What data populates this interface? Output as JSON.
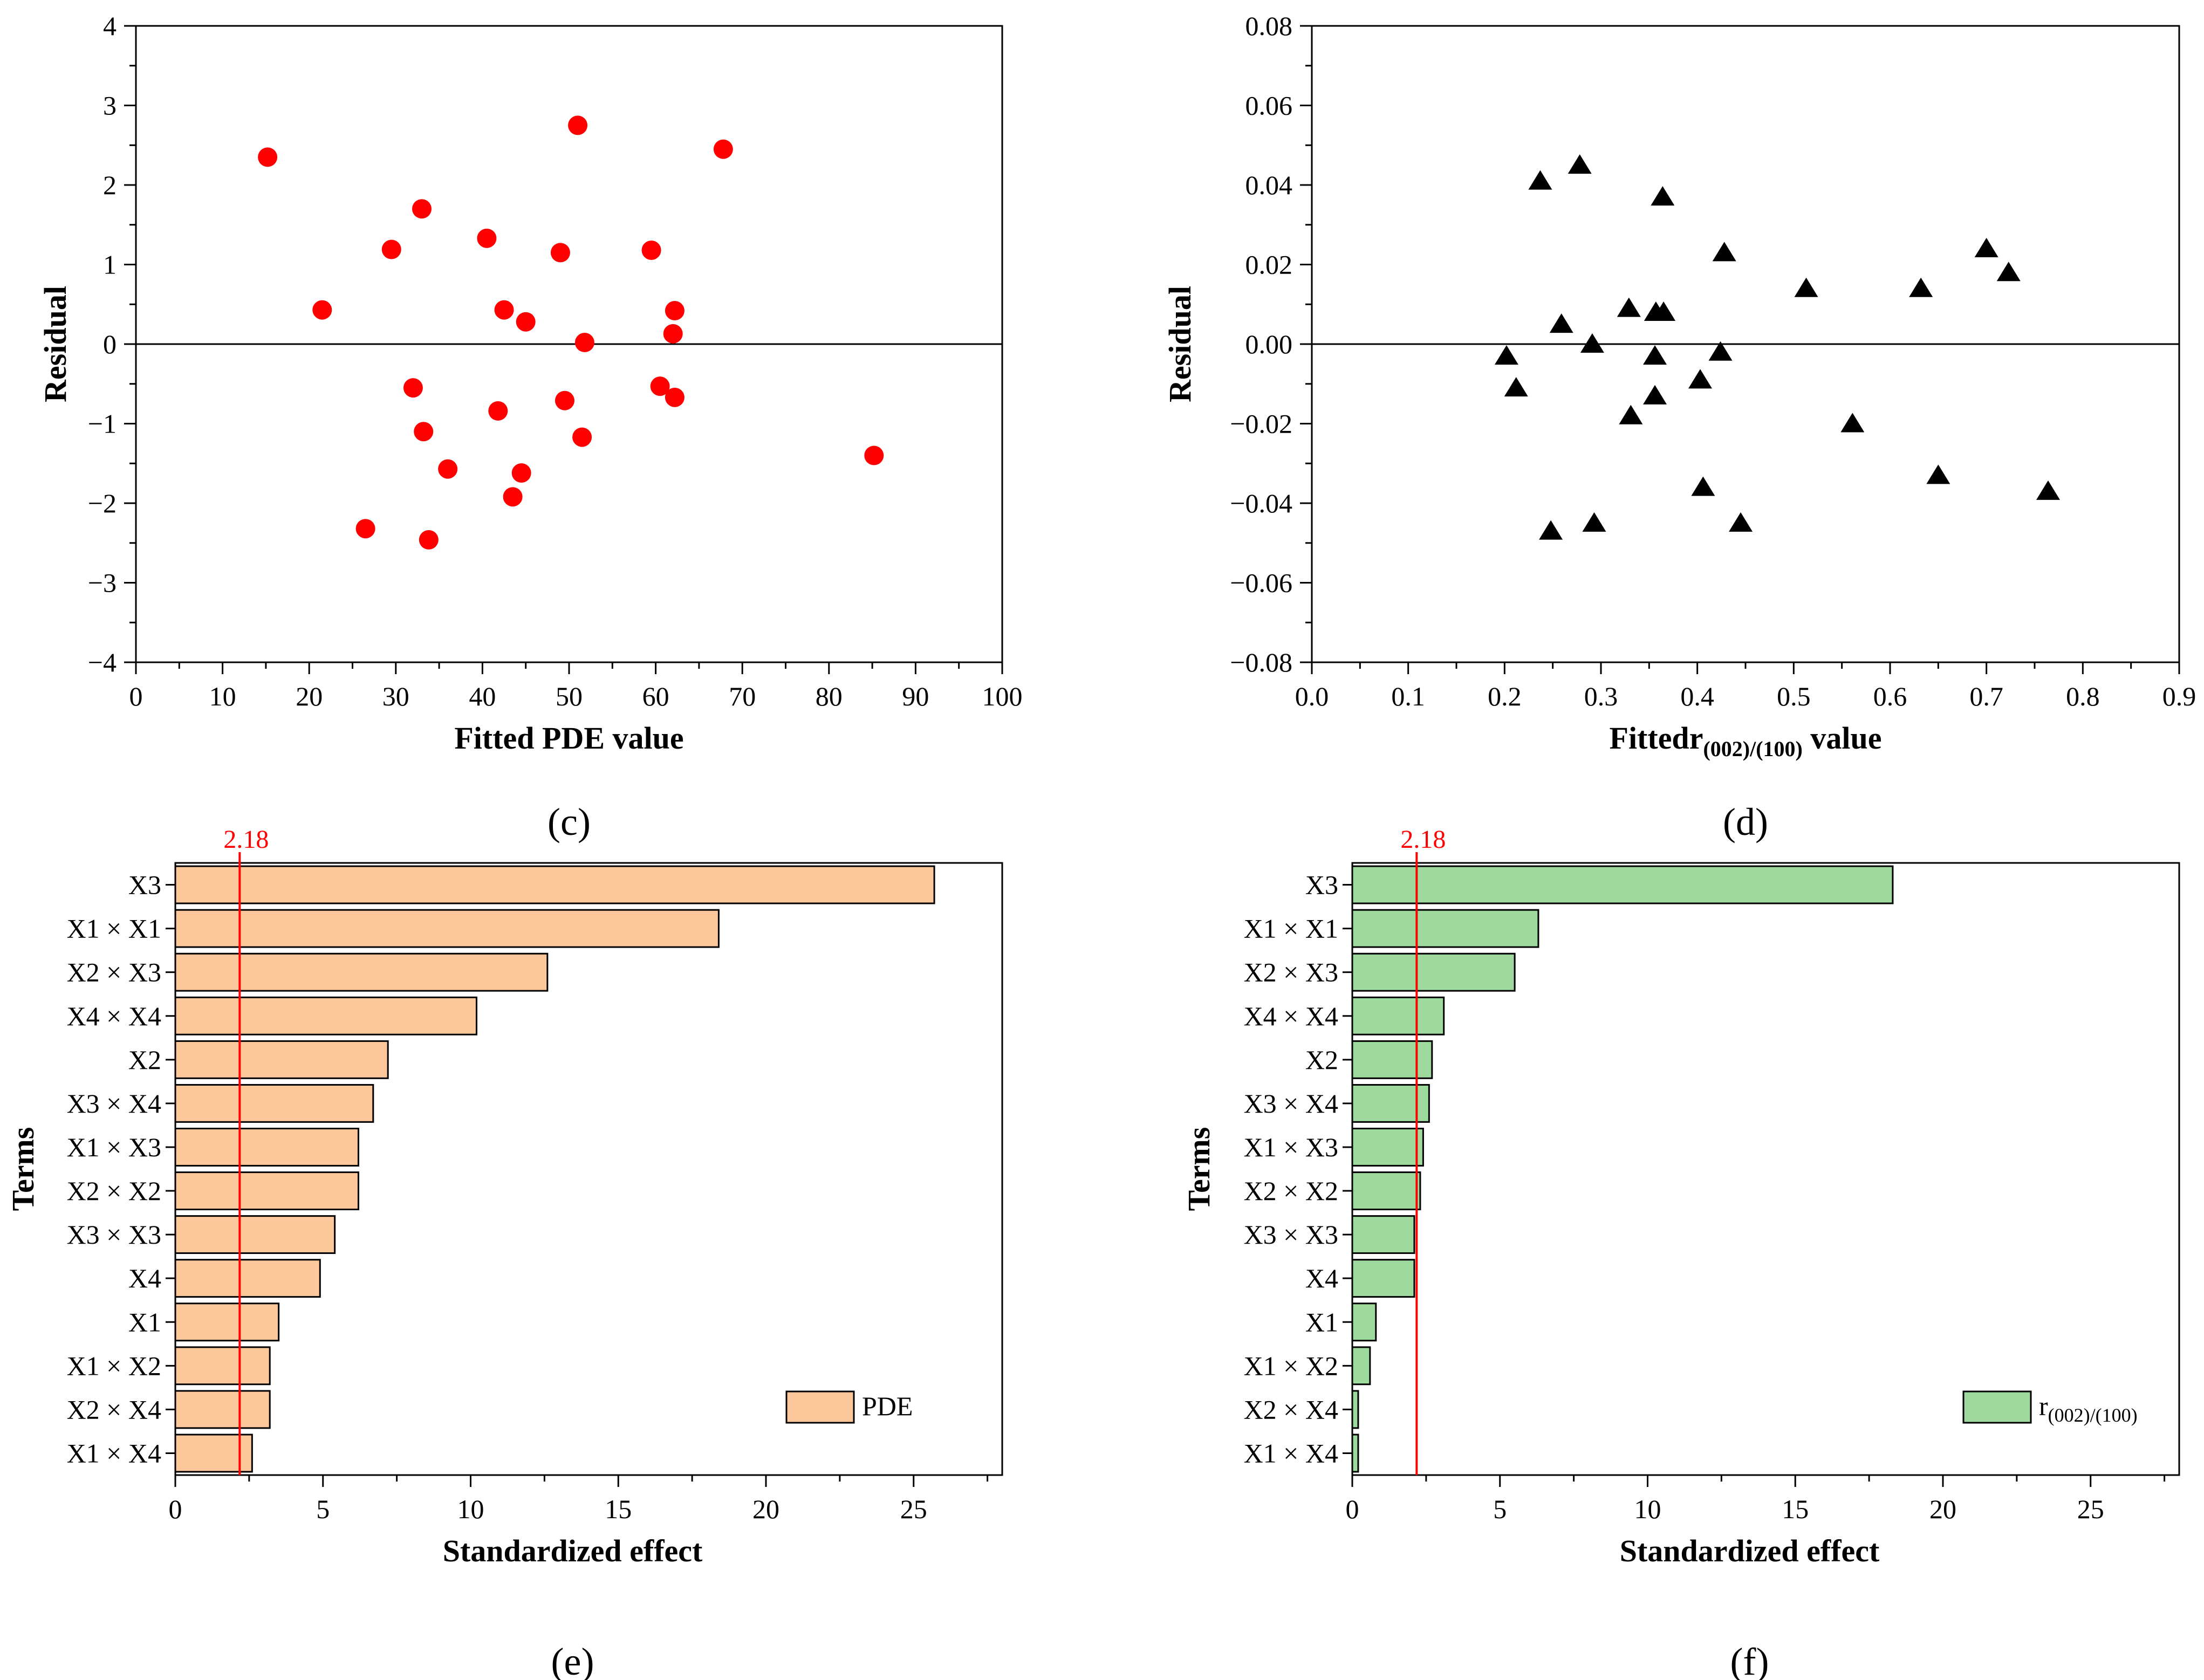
{
  "chart_data": [
    {
      "id": "c",
      "type": "scatter",
      "panel_label": "c",
      "xlabel": "Fitted PDE value",
      "ylabel": "Residual",
      "xlim": [
        0,
        100
      ],
      "ylim": [
        -4,
        4
      ],
      "xticks": [
        0,
        10,
        20,
        30,
        40,
        50,
        60,
        70,
        80,
        90,
        100
      ],
      "yticks": [
        -4,
        -3,
        -2,
        -1,
        0,
        1,
        2,
        3,
        4
      ],
      "marker": "circle",
      "marker_color": "#ff0000",
      "reference_line_y": 0,
      "points": [
        [
          15.2,
          2.35
        ],
        [
          21.5,
          0.43
        ],
        [
          26.5,
          -2.32
        ],
        [
          29.5,
          1.19
        ],
        [
          32.0,
          -0.55
        ],
        [
          33.0,
          1.7
        ],
        [
          33.2,
          -1.1
        ],
        [
          33.8,
          -2.46
        ],
        [
          36.0,
          -1.57
        ],
        [
          40.5,
          1.33
        ],
        [
          41.8,
          -0.84
        ],
        [
          42.5,
          0.43
        ],
        [
          43.5,
          -1.92
        ],
        [
          44.5,
          -1.62
        ],
        [
          45.0,
          0.28
        ],
        [
          49.0,
          1.15
        ],
        [
          49.5,
          -0.71
        ],
        [
          51.0,
          2.75
        ],
        [
          51.5,
          -1.17
        ],
        [
          51.8,
          0.02
        ],
        [
          59.5,
          1.18
        ],
        [
          60.5,
          -0.53
        ],
        [
          62.0,
          0.13
        ],
        [
          62.2,
          0.42
        ],
        [
          62.2,
          -0.67
        ],
        [
          67.8,
          2.45
        ],
        [
          85.2,
          -1.4
        ]
      ]
    },
    {
      "id": "d",
      "type": "scatter",
      "panel_label": "d",
      "xlabel_main": "Fittedr",
      "xlabel_sub": "(002)/(100)",
      "xlabel_tail": " value",
      "ylabel": "Residual",
      "xlim": [
        0.0,
        0.9
      ],
      "ylim": [
        -0.08,
        0.08
      ],
      "xticks": [
        "0.0",
        "0.1",
        "0.2",
        "0.3",
        "0.4",
        "0.5",
        "0.6",
        "0.7",
        "0.8",
        "0.9"
      ],
      "yticks": [
        "-0.08",
        "-0.06",
        "-0.04",
        "-0.02",
        "0.00",
        "0.02",
        "0.04",
        "0.06",
        "0.08"
      ],
      "marker": "triangle",
      "marker_color": "#000000",
      "reference_line_y": 0,
      "points": [
        [
          0.202,
          -0.003
        ],
        [
          0.212,
          -0.011
        ],
        [
          0.237,
          0.041
        ],
        [
          0.248,
          -0.047
        ],
        [
          0.259,
          0.005
        ],
        [
          0.278,
          0.045
        ],
        [
          0.291,
          0.0
        ],
        [
          0.293,
          -0.045
        ],
        [
          0.329,
          0.009
        ],
        [
          0.331,
          -0.018
        ],
        [
          0.356,
          -0.003
        ],
        [
          0.356,
          -0.013
        ],
        [
          0.357,
          0.008
        ],
        [
          0.364,
          0.037
        ],
        [
          0.365,
          0.008
        ],
        [
          0.403,
          -0.009
        ],
        [
          0.406,
          -0.036
        ],
        [
          0.424,
          -0.002
        ],
        [
          0.428,
          0.023
        ],
        [
          0.445,
          -0.045
        ],
        [
          0.513,
          0.014
        ],
        [
          0.561,
          -0.02
        ],
        [
          0.632,
          0.014
        ],
        [
          0.65,
          -0.033
        ],
        [
          0.7,
          0.024
        ],
        [
          0.723,
          0.018
        ],
        [
          0.764,
          -0.037
        ]
      ]
    },
    {
      "id": "e",
      "type": "bar",
      "orientation": "horizontal",
      "panel_label": "e",
      "xlabel": "Standardized effect",
      "ylabel": "Terms",
      "xlim": [
        0,
        28
      ],
      "xticks": [
        0,
        5,
        10,
        15,
        20,
        25
      ],
      "threshold": 2.18,
      "threshold_label": "2.18",
      "bar_color": "#fcc89b",
      "legend": "PDE",
      "categories": [
        "X3",
        "X1 × X1",
        "X2 × X3",
        "X4 × X4",
        "X2",
        "X3 × X4",
        "X1 × X3",
        "X2 × X2",
        "X3 × X3",
        "X4",
        "X1",
        "X1 × X2",
        "X2 × X4",
        "X1 × X4"
      ],
      "values": [
        25.7,
        18.4,
        12.6,
        10.2,
        7.2,
        6.7,
        6.2,
        6.2,
        5.4,
        4.9,
        3.5,
        3.2,
        3.2,
        2.6
      ]
    },
    {
      "id": "f",
      "type": "bar",
      "orientation": "horizontal",
      "panel_label": "f",
      "xlabel": "Standardized effect",
      "ylabel": "Terms",
      "xlim": [
        0,
        28
      ],
      "xticks": [
        0,
        5,
        10,
        15,
        20,
        25
      ],
      "threshold": 2.18,
      "threshold_label": "2.18",
      "bar_color": "#9ed99e",
      "legend_main": "r",
      "legend_sub": "(002)/(100)",
      "categories": [
        "X3",
        "X1 × X1",
        "X2 × X3",
        "X4 × X4",
        "X2",
        "X3 × X4",
        "X1 × X3",
        "X2 × X2",
        "X3 × X3",
        "X4",
        "X1",
        "X1 × X2",
        "X2 × X4",
        "X1 × X4"
      ],
      "values": [
        18.3,
        6.3,
        5.5,
        3.1,
        2.7,
        2.6,
        2.4,
        2.3,
        2.1,
        2.1,
        0.8,
        0.6,
        0.2,
        0.2
      ]
    }
  ]
}
